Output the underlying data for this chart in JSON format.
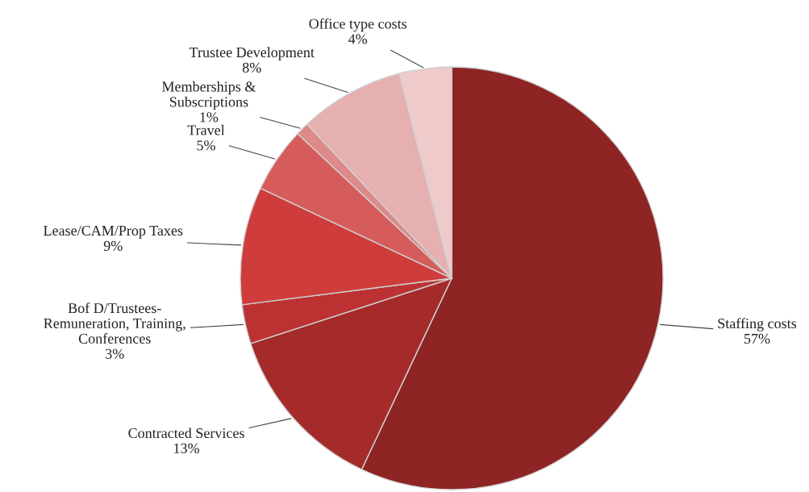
{
  "chart_data": {
    "type": "pie",
    "categories": [
      "Staffing costs",
      "Contracted Services",
      "Bof D/Trustees-\nRemuneration, Training,\nConferences",
      "Lease/CAM/Prop Taxes",
      "Travel",
      "Memberships &\nSubscriptions",
      "Trustee Development",
      "Office type costs"
    ],
    "values": [
      57,
      13,
      3,
      9,
      5,
      1,
      8,
      4
    ],
    "value_labels": [
      "57%",
      "13%",
      "3%",
      "9%",
      "5%",
      "1%",
      "8%",
      "4%"
    ],
    "colors": [
      "#8e2424",
      "#a52b2b",
      "#bc3232",
      "#cf3c3c",
      "#d65c5c",
      "#de8a8a",
      "#e6b0b0",
      "#efcaca"
    ],
    "legend": false
  }
}
